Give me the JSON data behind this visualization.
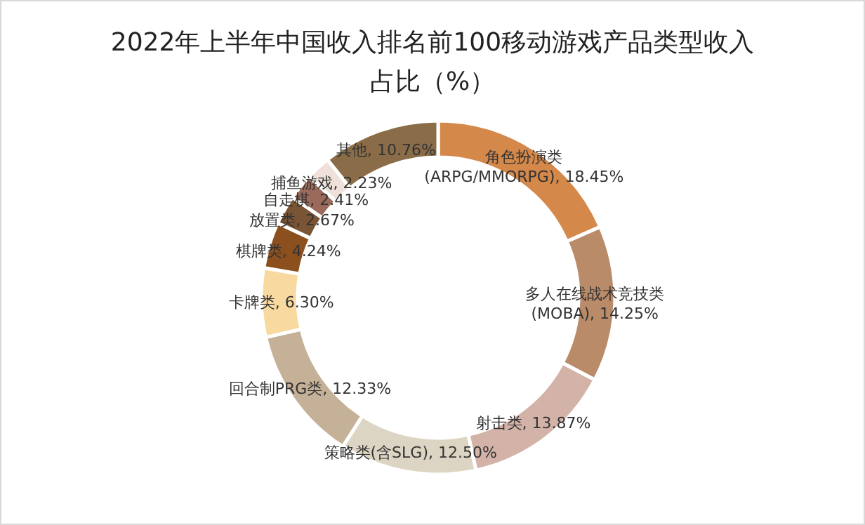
{
  "chart_data": {
    "type": "donut",
    "title": "2022年上半年中国收入排名前100移动游戏产品类型收入占比（%）",
    "categories": [
      "角色扮演类(ARPG/MMORPG)",
      "多人在线战术竞技类(MOBA)",
      "射击类",
      "策略类(含SLG)",
      "回合制PRG类",
      "卡牌类",
      "棋牌类",
      "放置类",
      "自走棋",
      "捕鱼游戏",
      "其他"
    ],
    "values": [
      18.45,
      14.25,
      13.87,
      12.5,
      12.33,
      6.3,
      4.24,
      2.67,
      2.41,
      2.23,
      10.76
    ],
    "value_labels": [
      "18.45%",
      "14.25%",
      "13.87%",
      "12.50%",
      "12.33%",
      "6.30%",
      "4.24%",
      "2.67%",
      "2.41%",
      "2.23%",
      "10.76%"
    ],
    "colors": [
      "#d4884a",
      "#b98b69",
      "#d3b3a8",
      "#ddd5c3",
      "#c4b197",
      "#f8d9a0",
      "#8c4f1e",
      "#7a5535",
      "#9c6a5a",
      "#efe1d9",
      "#8a6d48"
    ]
  }
}
